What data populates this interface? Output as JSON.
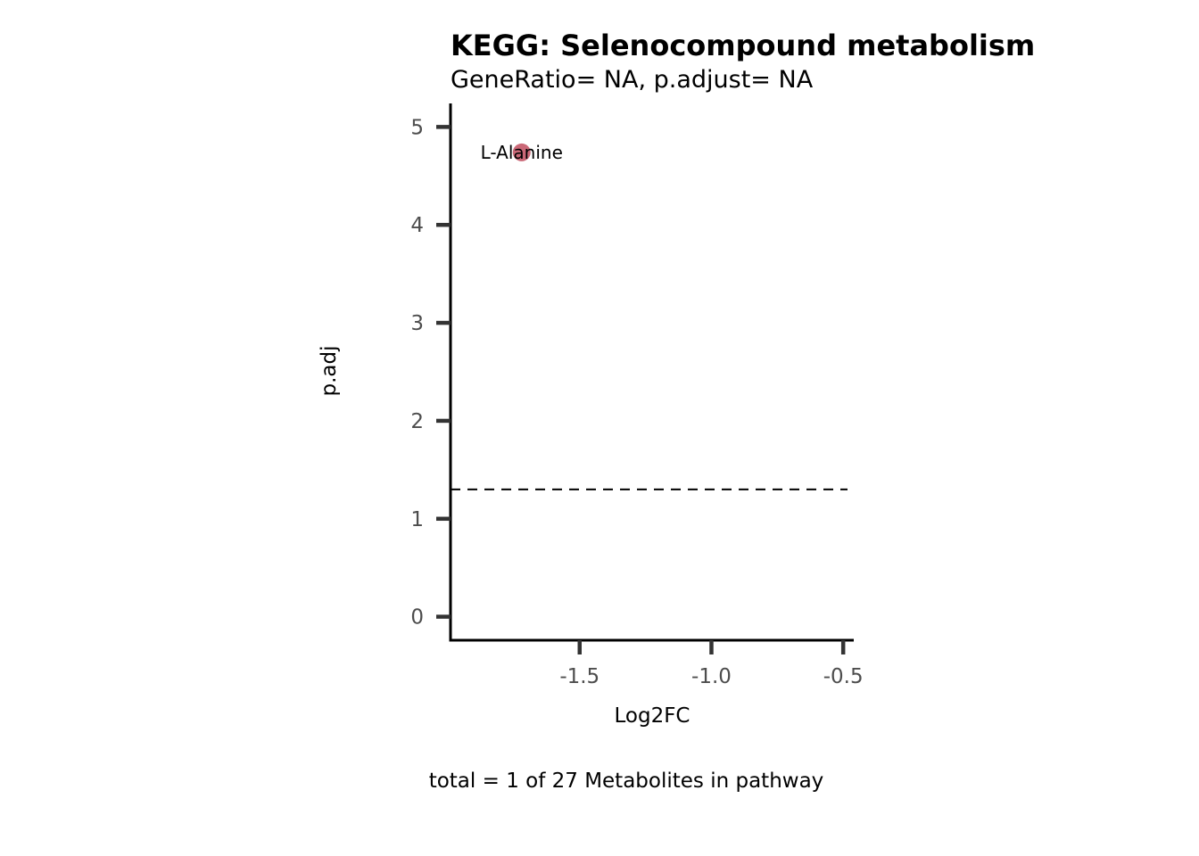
{
  "chart_data": {
    "type": "scatter",
    "title": "KEGG: Selenocompound metabolism",
    "subtitle": "GeneRatio= NA, p.adjust= NA",
    "xlabel": "Log2FC",
    "ylabel": "p.adj",
    "caption": "total = 1 of 27 Metabolites in pathway",
    "xlim": [
      -1.99,
      -0.46
    ],
    "ylim": [
      -0.24,
      5.24
    ],
    "xticks": [
      -1.5,
      -1.0,
      -0.5
    ],
    "xtick_labels": [
      "-1.5",
      "-1.0",
      "-0.5"
    ],
    "yticks": [
      0,
      1,
      2,
      3,
      4,
      5
    ],
    "ytick_labels": [
      "0",
      "1",
      "2",
      "3",
      "4",
      "5"
    ],
    "threshold_line": {
      "y": 1.3,
      "style": "dashed"
    },
    "points": [
      {
        "label": "L-Alanine",
        "x": -1.72,
        "y": 4.74,
        "color": "#c76070"
      }
    ],
    "grid": false,
    "legend": "none"
  }
}
